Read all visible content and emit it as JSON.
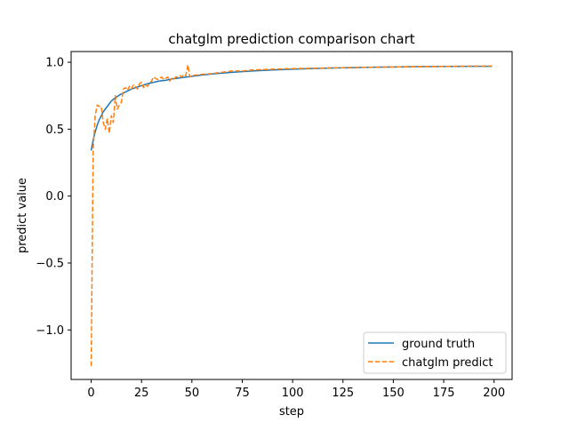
{
  "chart_data": {
    "type": "line",
    "title": "chatglm prediction comparison chart",
    "xlabel": "step",
    "ylabel": "predict value",
    "xlim": [
      -9.95,
      208.95
    ],
    "ylim": [
      -1.37,
      1.08
    ],
    "xticks": [
      0,
      25,
      50,
      75,
      100,
      125,
      150,
      175,
      200
    ],
    "xtick_labels": [
      "0",
      "25",
      "50",
      "75",
      "100",
      "125",
      "150",
      "175",
      "200"
    ],
    "yticks": [
      -1.0,
      -0.5,
      0.0,
      0.5,
      1.0
    ],
    "ytick_labels": [
      "−1.0",
      "−0.5",
      "0.0",
      "0.5",
      "1.0"
    ],
    "grid": false,
    "legend_position": "lower right",
    "series": [
      {
        "name": "ground truth",
        "style": "solid",
        "color": "#1f77b4",
        "x": [
          0,
          1,
          2,
          3,
          4,
          5,
          6,
          7,
          8,
          9,
          10,
          12,
          14,
          16,
          18,
          20,
          22,
          25,
          28,
          31,
          34,
          37,
          40,
          45,
          50,
          55,
          60,
          70,
          80,
          90,
          100,
          110,
          120,
          130,
          140,
          150,
          160,
          170,
          180,
          190,
          199
        ],
        "y": [
          0.34,
          0.42,
          0.48,
          0.53,
          0.57,
          0.6,
          0.63,
          0.65,
          0.67,
          0.69,
          0.71,
          0.735,
          0.755,
          0.77,
          0.785,
          0.8,
          0.81,
          0.825,
          0.84,
          0.85,
          0.86,
          0.865,
          0.875,
          0.885,
          0.895,
          0.905,
          0.912,
          0.925,
          0.935,
          0.942,
          0.948,
          0.953,
          0.957,
          0.96,
          0.963,
          0.965,
          0.967,
          0.968,
          0.969,
          0.97,
          0.97
        ]
      },
      {
        "name": "chatglm predict",
        "style": "dashed",
        "color": "#ff7f0e",
        "x": [
          0,
          1,
          2,
          3,
          4,
          5,
          6,
          7,
          8,
          9,
          10,
          11,
          12,
          13,
          14,
          15,
          16,
          17,
          18,
          19,
          20,
          21,
          22,
          23,
          24,
          25,
          26,
          27,
          28,
          29,
          30,
          31,
          32,
          33,
          34,
          35,
          36,
          37,
          38,
          39,
          40,
          41,
          42,
          43,
          44,
          45,
          46,
          47,
          48,
          49,
          50,
          55,
          60,
          65,
          70,
          75,
          80,
          90,
          100,
          110,
          120,
          130,
          140,
          150,
          160,
          170,
          180,
          190,
          199
        ],
        "y": [
          -1.27,
          0.35,
          0.6,
          0.68,
          0.67,
          0.67,
          0.55,
          0.5,
          0.58,
          0.47,
          0.6,
          0.55,
          0.75,
          0.65,
          0.68,
          0.7,
          0.8,
          0.81,
          0.79,
          0.82,
          0.8,
          0.83,
          0.82,
          0.8,
          0.84,
          0.85,
          0.81,
          0.83,
          0.82,
          0.84,
          0.86,
          0.89,
          0.88,
          0.87,
          0.88,
          0.89,
          0.87,
          0.88,
          0.89,
          0.86,
          0.88,
          0.87,
          0.89,
          0.89,
          0.9,
          0.89,
          0.91,
          0.9,
          0.98,
          0.89,
          0.9,
          0.91,
          0.915,
          0.925,
          0.935,
          0.935,
          0.942,
          0.948,
          0.952,
          0.955,
          0.958,
          0.961,
          0.963,
          0.965,
          0.967,
          0.968,
          0.97,
          0.971,
          0.972
        ]
      }
    ]
  }
}
